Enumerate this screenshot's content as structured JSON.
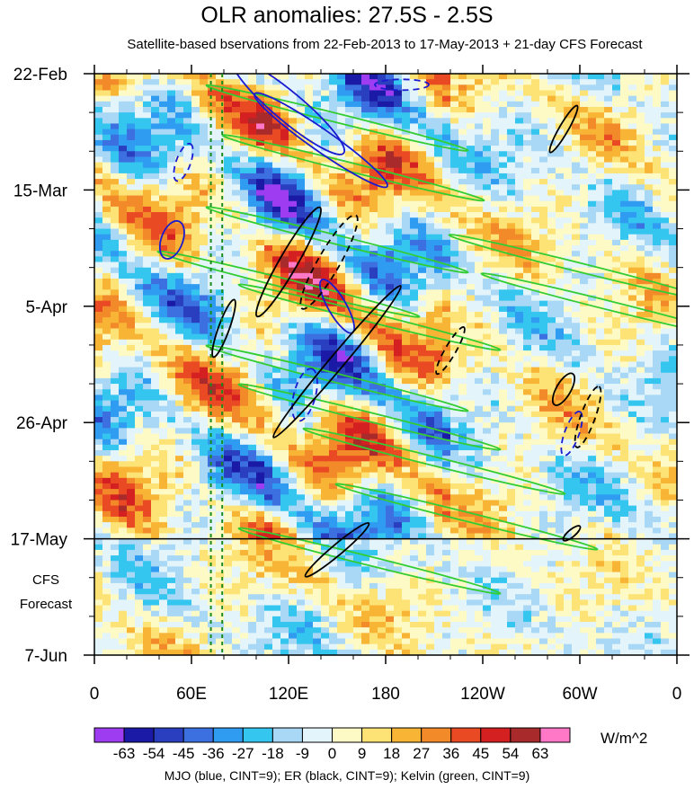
{
  "chart_data": {
    "type": "heatmap",
    "title": "OLR anomalies: 27.5S - 2.5S",
    "subtitle": "Satellite-based bservations from 22-Feb-2013 to 17-May-2013 + 21-day CFS Forecast",
    "xlabel": "",
    "ylabel": "",
    "x_ticks": [
      {
        "lon": 0,
        "label": "0"
      },
      {
        "lon": 60,
        "label": "60E"
      },
      {
        "lon": 120,
        "label": "120E"
      },
      {
        "lon": 180,
        "label": "180"
      },
      {
        "lon": 240,
        "label": "120W"
      },
      {
        "lon": 300,
        "label": "60W"
      },
      {
        "lon": 360,
        "label": "0"
      }
    ],
    "y_ticks": [
      {
        "day": 0,
        "label": "22-Feb"
      },
      {
        "day": 21,
        "label": "15-Mar"
      },
      {
        "day": 42,
        "label": "5-Apr"
      },
      {
        "day": 63,
        "label": "26-Apr"
      },
      {
        "day": 84,
        "label": "17-May"
      },
      {
        "day": 105,
        "label": "7-Jun"
      }
    ],
    "forecast_start_label": "17-May",
    "forecast_label_lines": [
      "CFS",
      "Forecast"
    ],
    "forecast_start_day": 84,
    "green_dashed_lines_lon": [
      72,
      79
    ],
    "colorbar": {
      "labels": [
        "-63",
        "-54",
        "-45",
        "-36",
        "-27",
        "-18",
        "-9",
        "0",
        "9",
        "18",
        "27",
        "36",
        "45",
        "54",
        "63"
      ],
      "colors": [
        "#9d3cf0",
        "#1a1aa6",
        "#2a3fc0",
        "#3c6fe0",
        "#2f9cf2",
        "#35c6f0",
        "#a8d8f5",
        "#e3f5fb",
        "#fefac6",
        "#fde275",
        "#f8b435",
        "#f38a2a",
        "#ea4a23",
        "#d42020",
        "#a82a2a",
        "#ff78c8"
      ],
      "units": "W/m^2"
    },
    "footer": "MJO (blue, CINT=9); ER (black, CINT=9); Kelvin (green, CINT=9)"
  }
}
